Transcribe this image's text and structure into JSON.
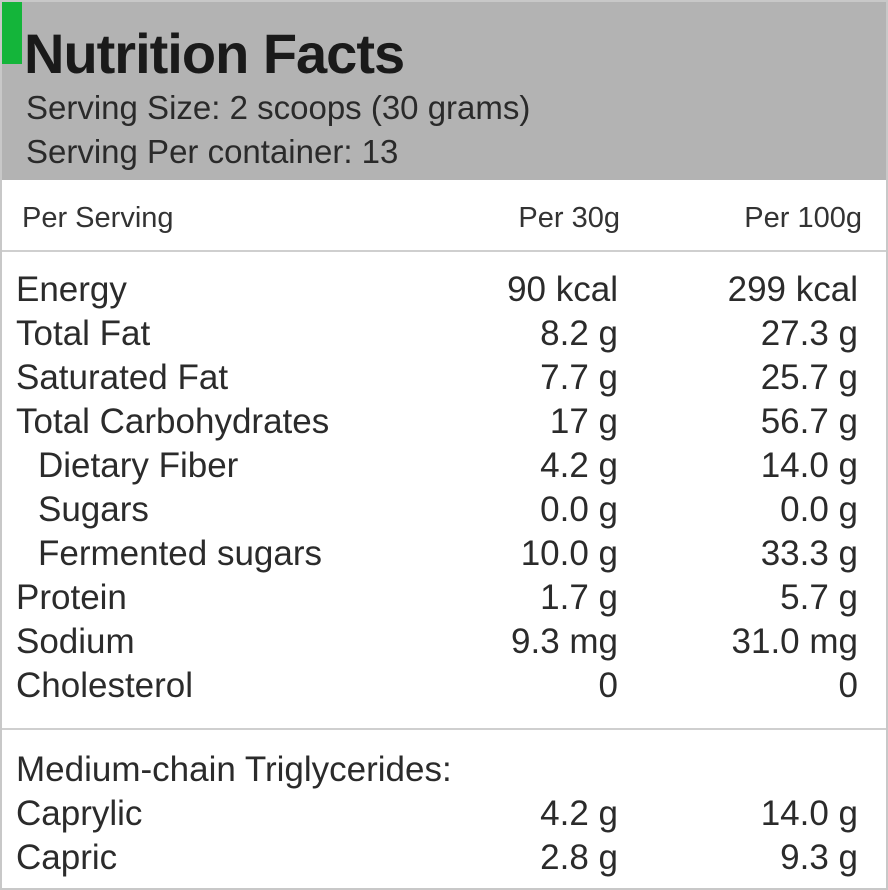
{
  "header": {
    "title": "Nutrition Facts",
    "serving_size": "Serving Size: 2 scoops (30 grams)",
    "servings_per_container": "Serving Per container: 13"
  },
  "columns": {
    "label": "Per Serving",
    "per_30g": "Per 30g",
    "per_100g": "Per 100g"
  },
  "nutrients": [
    {
      "name": "Energy",
      "per_30g": "90 kcal",
      "per_100g": "299 kcal"
    },
    {
      "name": "Total Fat",
      "per_30g": "8.2 g",
      "per_100g": "27.3 g"
    },
    {
      "name": "Saturated Fat",
      "per_30g": "7.7 g",
      "per_100g": "25.7 g"
    },
    {
      "name": "Total Carbohydrates",
      "per_30g": "17 g",
      "per_100g": "56.7 g"
    },
    {
      "name": "Dietary Fiber",
      "per_30g": "4.2 g",
      "per_100g": "14.0 g"
    },
    {
      "name": "Sugars",
      "per_30g": "0.0 g",
      "per_100g": "0.0 g"
    },
    {
      "name": "Fermented sugars",
      "per_30g": "10.0 g",
      "per_100g": "33.3 g"
    },
    {
      "name": "Protein",
      "per_30g": "1.7 g",
      "per_100g": "5.7 g"
    },
    {
      "name": "Sodium",
      "per_30g": "9.3 mg",
      "per_100g": "31.0 mg"
    },
    {
      "name": "Cholesterol",
      "per_30g": "0",
      "per_100g": "0"
    }
  ],
  "mct": {
    "heading": "Medium-chain Triglycerides:",
    "items": [
      {
        "name": "Caprylic",
        "per_30g": "4.2 g",
        "per_100g": "14.0 g"
      },
      {
        "name": "Capric",
        "per_30g": "2.8 g",
        "per_100g": "9.3 g"
      }
    ]
  },
  "colors": {
    "header_bg": "#b3b3b3",
    "accent_tab": "#14b53a"
  }
}
